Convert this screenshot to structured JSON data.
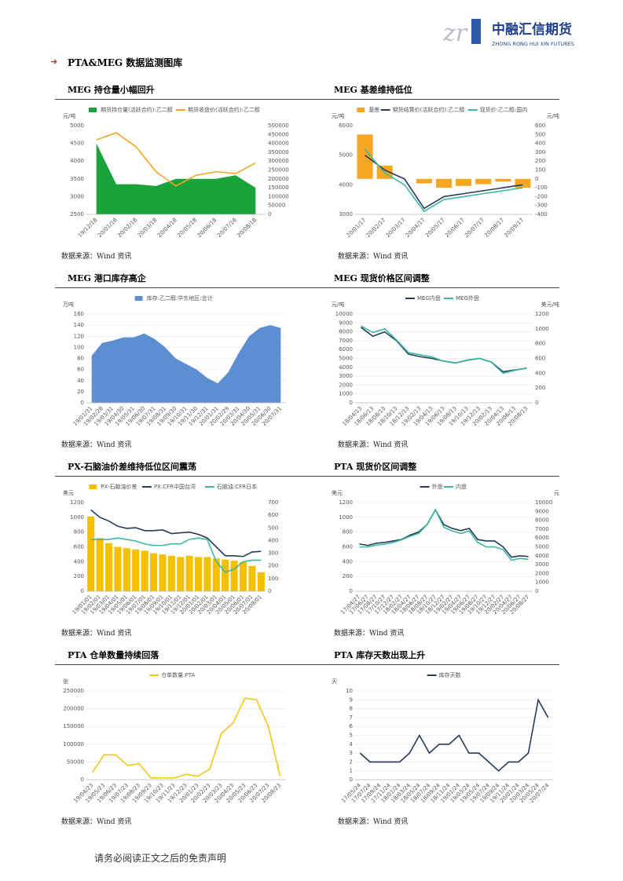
{
  "page": {
    "brand": "中融汇信期货",
    "brand_en": "ZHONG RONG HUI XIN FUTURES",
    "section": "PTA&MEG 数据监测图库",
    "footer": "请务必阅读正文之后的免责声明"
  },
  "chart_data": [
    {
      "type": "combo",
      "title": "MEG 持仓量小幅回升",
      "source": "数据来源：Wind 资讯",
      "y_unit": "元/吨",
      "categories": [
        "19/12/18",
        "20/01/18",
        "20/02/18",
        "20/03/18",
        "20/04/18",
        "20/05/18",
        "20/06/18",
        "20/07/18",
        "20/08/18"
      ],
      "series": [
        {
          "name": "期货持仓量(活跃合约):乙二醇",
          "type": "area",
          "axis": "y2",
          "color": "#1aa33a",
          "values": [
            400000,
            170000,
            170000,
            160000,
            200000,
            200000,
            200000,
            220000,
            150000
          ]
        },
        {
          "name": "期货收盘价(活跃合约):乙二醇",
          "type": "line",
          "color": "#f5a623",
          "values": [
            4600,
            4800,
            4400,
            3700,
            3300,
            3600,
            3700,
            3650,
            3950
          ]
        }
      ],
      "ylim": [
        2500,
        5000
      ],
      "yticks": [
        2500,
        3000,
        3500,
        4000,
        4500,
        5000
      ],
      "y2lim": [
        0,
        500000
      ],
      "y2ticks": [
        0,
        50000,
        100000,
        150000,
        200000,
        250000,
        300000,
        350000,
        400000,
        450000,
        500000
      ],
      "grid": false
    },
    {
      "type": "combo",
      "title": "MEG 基差维持低位",
      "source": "数据来源：Wind 资讯",
      "y_unit": "元/吨",
      "y2_unit": "元/吨",
      "categories": [
        "20/01/17",
        "20/02/17",
        "20/03/17",
        "20/04/17",
        "20/05/17",
        "20/06/17",
        "20/07/17",
        "20/08/17",
        "20/09/17"
      ],
      "series": [
        {
          "name": "基差",
          "type": "bar",
          "axis": "y2",
          "color": "#f5a623",
          "values": [
            500,
            150,
            0,
            -50,
            -100,
            -80,
            -60,
            -30,
            -100
          ]
        },
        {
          "name": "期货结算价(活跃合约):乙二醇",
          "type": "line",
          "color": "#263a5a",
          "values": [
            5000,
            4500,
            4200,
            3200,
            3600,
            3700,
            3800,
            3900,
            4000
          ]
        },
        {
          "name": "现货价:乙二醇:国内",
          "type": "line",
          "color": "#3db8a0",
          "values": [
            5200,
            4400,
            4000,
            3100,
            3500,
            3600,
            3700,
            3800,
            3900
          ]
        }
      ],
      "ylim": [
        3000,
        6000
      ],
      "yticks": [
        3000,
        4000,
        5000,
        6000
      ],
      "y2lim": [
        -400,
        600
      ],
      "y2ticks": [
        -400,
        -300,
        -200,
        -100,
        0,
        100,
        200,
        300,
        400,
        500,
        600
      ],
      "grid": false
    },
    {
      "type": "area",
      "title": "MEG 港口库存高企",
      "source": "数据来源：Wind 资讯",
      "y_unit": "万吨",
      "categories": [
        "19/01/31",
        "19/02/28",
        "19/03/31",
        "19/04/30",
        "19/05/31",
        "19/06/30",
        "19/07/31",
        "19/08/31",
        "19/09/30",
        "19/10/31",
        "19/11/30",
        "19/12/31",
        "20/01/31",
        "20/02/29",
        "20/03/31",
        "20/04/30",
        "20/05/31",
        "20/06/30",
        "20/07/31"
      ],
      "series": [
        {
          "name": "库存:乙二醇:华东地区:合计",
          "color": "#5b8fd1",
          "values": [
            85,
            108,
            112,
            118,
            118,
            125,
            115,
            100,
            80,
            70,
            60,
            45,
            35,
            55,
            90,
            120,
            135,
            140,
            135
          ]
        }
      ],
      "ylim": [
        0,
        160
      ],
      "yticks": [
        0,
        20,
        40,
        60,
        80,
        100,
        120,
        140,
        160
      ],
      "grid": true
    },
    {
      "type": "line",
      "title": "MEG 现货价格区间调整",
      "source": "数据来源：Wind 资讯",
      "y_unit": "元/吨",
      "y2_unit": "美元/吨",
      "categories": [
        "18/04/13",
        "18/06/13",
        "18/08/13",
        "18/10/13",
        "18/12/13",
        "19/02/13",
        "19/04/13",
        "19/06/13",
        "19/08/13",
        "19/10/13",
        "19/12/13",
        "20/02/13",
        "20/04/13",
        "20/06/13",
        "20/08/13"
      ],
      "series": [
        {
          "name": "MEG内盘",
          "color": "#263a5a",
          "values": [
            8500,
            7500,
            8000,
            7000,
            5500,
            5200,
            5000,
            4700,
            4500,
            4800,
            5000,
            4600,
            3500,
            3700,
            3900
          ]
        },
        {
          "name": "MEG外盘",
          "axis": "y2",
          "color": "#3db8a0",
          "values": [
            1040,
            950,
            1000,
            850,
            680,
            650,
            620,
            560,
            540,
            580,
            600,
            550,
            400,
            440,
            470
          ]
        }
      ],
      "ylim": [
        0,
        10000
      ],
      "yticks": [
        0,
        1000,
        2000,
        3000,
        4000,
        5000,
        6000,
        7000,
        8000,
        9000,
        10000
      ],
      "y2lim": [
        0,
        1200
      ],
      "y2ticks": [
        0,
        200,
        400,
        600,
        800,
        1000,
        1200
      ],
      "grid": true
    },
    {
      "type": "combo",
      "title": "PX-石脑油价差维持低位区间震荡",
      "source": "数据来源：Wind 资讯",
      "y_unit": "美元",
      "categories": [
        "19/01/01",
        "19/02/01",
        "19/03/01",
        "19/04/01",
        "19/05/01",
        "19/06/01",
        "19/07/01",
        "19/08/01",
        "19/09/01",
        "19/10/01",
        "19/11/01",
        "19/12/01",
        "20/01/01",
        "20/02/01",
        "20/03/01",
        "20/04/01",
        "20/05/01",
        "20/06/01",
        "20/07/01",
        "20/08/01"
      ],
      "series": [
        {
          "name": "PX-石脑油价差",
          "type": "bar",
          "axis": "y2",
          "color": "#f5c000",
          "values": [
            590,
            420,
            380,
            350,
            340,
            330,
            320,
            300,
            290,
            280,
            270,
            280,
            270,
            270,
            260,
            250,
            240,
            230,
            200,
            150
          ]
        },
        {
          "name": "PX:CFR中国台湾",
          "type": "line",
          "color": "#263a5a",
          "values": [
            1100,
            1000,
            950,
            880,
            850,
            860,
            820,
            820,
            830,
            780,
            790,
            800,
            770,
            720,
            600,
            480,
            480,
            470,
            530,
            540
          ]
        },
        {
          "name": "石脑油:CFR日本",
          "type": "line",
          "color": "#3db8a0",
          "values": [
            700,
            700,
            700,
            720,
            700,
            680,
            640,
            620,
            620,
            640,
            640,
            700,
            720,
            700,
            400,
            260,
            300,
            400,
            420,
            420
          ]
        }
      ],
      "ylim": [
        0,
        1200
      ],
      "yticks": [
        0,
        200,
        400,
        600,
        800,
        1000,
        1200
      ],
      "y2lim": [
        0,
        700
      ],
      "y2ticks": [
        0,
        100,
        200,
        300,
        400,
        500,
        600,
        700
      ],
      "grid": false
    },
    {
      "type": "line",
      "title": "PTA 现货价区间调整",
      "source": "数据来源：Wind 资讯",
      "y_unit": "美元",
      "y2_unit": "元",
      "categories": [
        "17/04/27",
        "17/06/27",
        "17/08/27",
        "17/10/27",
        "17/12/27",
        "18/02/27",
        "18/04/27",
        "18/06/27",
        "18/08/27",
        "18/10/27",
        "18/12/27",
        "19/02/27",
        "19/04/27",
        "19/06/27",
        "19/08/27",
        "19/10/27",
        "19/12/27",
        "20/02/27",
        "20/04/27",
        "20/06/27",
        "20/08/27"
      ],
      "series": [
        {
          "name": "外盘",
          "color": "#263a5a",
          "values": [
            640,
            620,
            650,
            660,
            680,
            700,
            760,
            800,
            900,
            1100,
            900,
            850,
            820,
            850,
            700,
            680,
            680,
            600,
            460,
            480,
            470
          ]
        },
        {
          "name": "内盘",
          "axis": "y2",
          "color": "#3db8a0",
          "values": [
            5000,
            5000,
            5200,
            5300,
            5500,
            5800,
            6200,
            6500,
            7500,
            9200,
            7200,
            6800,
            6500,
            6800,
            5500,
            5000,
            5000,
            4700,
            3500,
            3700,
            3600
          ]
        }
      ],
      "ylim": [
        0,
        1200
      ],
      "yticks": [
        0,
        200,
        400,
        600,
        800,
        1000,
        1200
      ],
      "y2lim": [
        0,
        10000
      ],
      "y2ticks": [
        0,
        1000,
        2000,
        3000,
        4000,
        5000,
        6000,
        7000,
        8000,
        9000,
        10000
      ],
      "grid": true
    },
    {
      "type": "line",
      "title": "PTA 仓单数量持续回落",
      "source": "数据来源：Wind 资讯",
      "y_unit": "张",
      "categories": [
        "19/04/23",
        "19/05/23",
        "19/06/23",
        "19/07/23",
        "19/08/23",
        "19/09/23",
        "19/10/23",
        "19/11/23",
        "19/12/23",
        "20/01/23",
        "20/02/23",
        "20/03/23",
        "20/04/23",
        "20/05/23",
        "20/06/23",
        "20/07/23",
        "20/08/23"
      ],
      "series": [
        {
          "name": "仓单数量:PTA",
          "color": "#f5c518",
          "values": [
            20000,
            70000,
            70000,
            40000,
            45000,
            5000,
            5000,
            5000,
            15000,
            10000,
            30000,
            130000,
            160000,
            230000,
            225000,
            150000,
            10000
          ]
        }
      ],
      "ylim": [
        0,
        250000
      ],
      "yticks": [
        0,
        50000,
        100000,
        150000,
        200000,
        250000
      ],
      "grid": true
    },
    {
      "type": "line",
      "title": "PTA 库存天数出现上升",
      "source": "数据来源：Wind 资讯",
      "y_unit": "天",
      "categories": [
        "17/05/24",
        "17/07/24",
        "17/09/24",
        "17/11/24",
        "18/01/24",
        "18/03/24",
        "18/05/24",
        "18/07/24",
        "18/09/24",
        "18/11/24",
        "19/01/24",
        "19/03/24",
        "19/05/24",
        "19/07/24",
        "19/09/24",
        "19/11/24",
        "20/01/24",
        "20/03/24",
        "20/05/24",
        "20/07/24"
      ],
      "series": [
        {
          "name": "库存天数",
          "color": "#263a5a",
          "values": [
            3,
            2,
            2,
            2,
            2,
            3,
            5,
            3,
            4,
            4,
            5,
            3,
            3,
            2,
            1,
            2,
            2,
            3,
            9,
            7
          ]
        }
      ],
      "ylim": [
        0,
        10
      ],
      "yticks": [
        0,
        1,
        2,
        3,
        4,
        5,
        6,
        7,
        8,
        9,
        10
      ],
      "grid": true
    }
  ]
}
